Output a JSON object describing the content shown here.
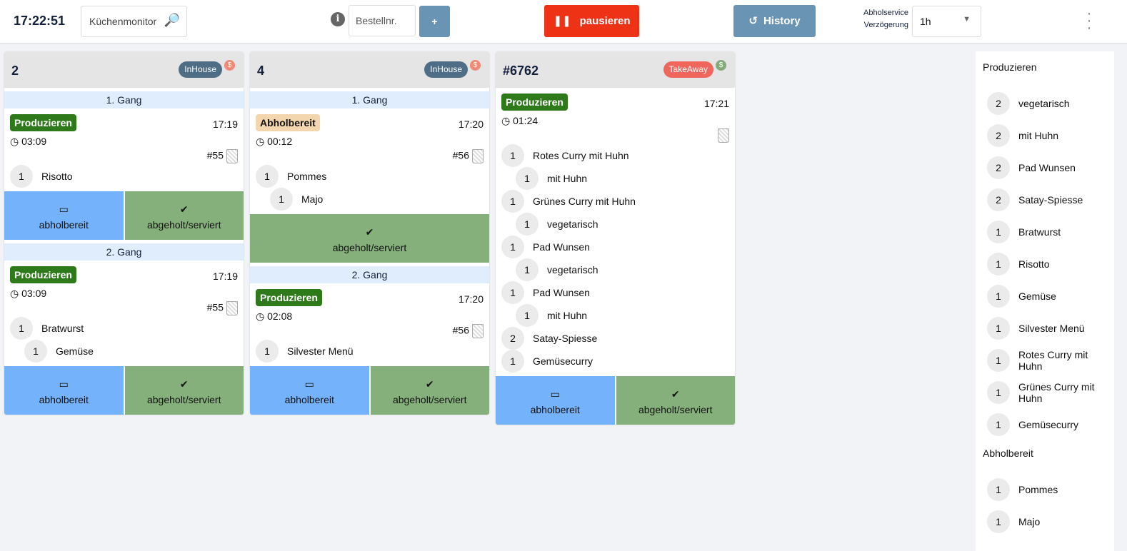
{
  "header": {
    "clock": "17:22:51",
    "search_value": "Küchenmonitor",
    "search_icon": "magnifier-icon",
    "order_placeholder": "Bestellnr.",
    "add_label": "+",
    "pause_label": "pausieren",
    "history_label": "History",
    "delay_label_1": "Abholservice",
    "delay_label_2": "Verzögerung",
    "delay_value": "1h"
  },
  "colors": {
    "produzieren": "#2e7a1a",
    "abholbereit": "#f3d6ae",
    "inhouse": "#4f6d85",
    "takeaway": "#f0665c",
    "pause": "#ee3216",
    "blue_btn": "#74b3fc",
    "green_btn": "#86b07b"
  },
  "cards": [
    {
      "title": "2",
      "badge": "InHouse",
      "badge_type": "inhouse",
      "dollar": "$",
      "dollar_color": "#ef8a76",
      "sections": [
        {
          "gang": "1. Gang",
          "status": "Produzieren",
          "time": "17:19",
          "timer": "03:09",
          "ref": "#55",
          "items": [
            {
              "qty": "1",
              "name": "Risotto"
            }
          ],
          "buttons": [
            "abholbereit",
            "abgeholt/serviert"
          ]
        },
        {
          "gang": "2. Gang",
          "status": "Produzieren",
          "time": "17:19",
          "timer": "03:09",
          "ref": "#55",
          "items": [
            {
              "qty": "1",
              "name": "Bratwurst"
            },
            {
              "qty": "1",
              "name": "Gemüse",
              "sub": true
            }
          ],
          "buttons": [
            "abholbereit",
            "abgeholt/serviert"
          ]
        }
      ]
    },
    {
      "title": "4",
      "badge": "InHouse",
      "badge_type": "inhouse",
      "dollar": "$",
      "dollar_color": "#ef8a76",
      "sections": [
        {
          "gang": "1. Gang",
          "status": "Abholbereit",
          "time": "17:20",
          "timer": "00:12",
          "ref": "#56",
          "items": [
            {
              "qty": "1",
              "name": "Pommes"
            },
            {
              "qty": "1",
              "name": "Majo",
              "sub": true
            }
          ],
          "buttons": [
            "abgeholt/serviert"
          ]
        },
        {
          "gang": "2. Gang",
          "status": "Produzieren",
          "time": "17:20",
          "timer": "02:08",
          "ref": "#56",
          "items": [
            {
              "qty": "1",
              "name": "Silvester Menü"
            }
          ],
          "buttons": [
            "abholbereit",
            "abgeholt/serviert"
          ]
        }
      ]
    },
    {
      "title": "#6762",
      "badge": "TakeAway",
      "badge_type": "takeaway",
      "dollar": "$",
      "dollar_color": "#86a97a",
      "sections": [
        {
          "status": "Produzieren",
          "time": "17:21",
          "timer": "01:24",
          "ref": "",
          "items": [
            {
              "qty": "1",
              "name": "Rotes Curry mit Huhn"
            },
            {
              "qty": "1",
              "name": "mit Huhn",
              "sub": true
            },
            {
              "qty": "1",
              "name": "Grünes Curry mit Huhn"
            },
            {
              "qty": "1",
              "name": "vegetarisch",
              "sub": true
            },
            {
              "qty": "1",
              "name": "Pad Wunsen"
            },
            {
              "qty": "1",
              "name": "vegetarisch",
              "sub": true
            },
            {
              "qty": "1",
              "name": "Pad Wunsen"
            },
            {
              "qty": "1",
              "name": "mit Huhn",
              "sub": true
            },
            {
              "qty": "2",
              "name": "Satay-Spiesse"
            },
            {
              "qty": "1",
              "name": "Gemüsecurry"
            }
          ],
          "buttons": [
            "abholbereit",
            "abgeholt/serviert"
          ]
        }
      ]
    }
  ],
  "sidebar": [
    {
      "heading": "Produzieren",
      "items": [
        {
          "qty": "2",
          "name": "vegetarisch"
        },
        {
          "qty": "2",
          "name": "mit Huhn"
        },
        {
          "qty": "2",
          "name": "Pad Wunsen"
        },
        {
          "qty": "2",
          "name": "Satay-Spiesse"
        },
        {
          "qty": "1",
          "name": "Bratwurst"
        },
        {
          "qty": "1",
          "name": "Risotto"
        },
        {
          "qty": "1",
          "name": "Gemüse"
        },
        {
          "qty": "1",
          "name": "Silvester Menü"
        },
        {
          "qty": "1",
          "name": "Rotes Curry mit Huhn"
        },
        {
          "qty": "1",
          "name": "Grünes Curry mit Huhn"
        },
        {
          "qty": "1",
          "name": "Gemüsecurry"
        }
      ]
    },
    {
      "heading": "Abholbereit",
      "items": [
        {
          "qty": "1",
          "name": "Pommes"
        },
        {
          "qty": "1",
          "name": "Majo"
        }
      ]
    }
  ]
}
